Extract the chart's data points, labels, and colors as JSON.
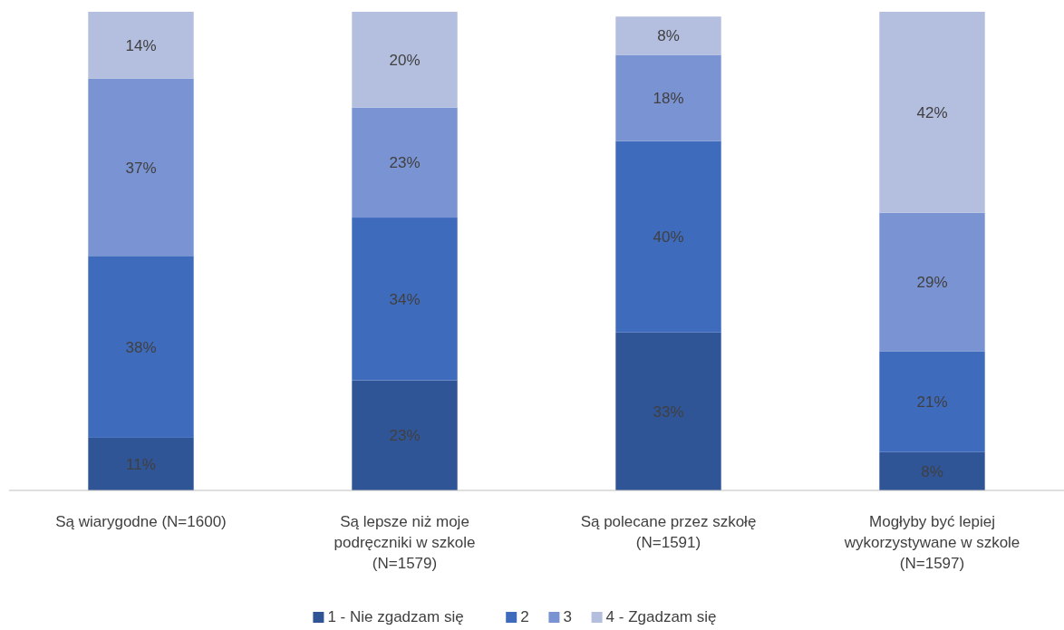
{
  "chart_data": {
    "type": "bar",
    "stacked": true,
    "legend": "bottom",
    "grid": false,
    "categories": [
      "Są wiarygodne (N=1600)",
      "Są lepsze niż moje podręczniki w szkole (N=1579)",
      "Są polecane przez szkołę (N=1591)",
      "Mogłyby być lepiej wykorzystywane w szkole (N=1597)"
    ],
    "series": [
      {
        "name": "1 - Nie zgadzam się",
        "color": "#2f5597",
        "values": [
          11,
          23,
          33,
          8
        ],
        "value_labels": [
          "11%",
          "23%",
          "33%",
          "8%"
        ]
      },
      {
        "name": "2",
        "color": "#3f6bbd",
        "values": [
          38,
          34,
          40,
          21
        ],
        "value_labels": [
          "38%",
          "34%",
          "40%",
          "21%"
        ]
      },
      {
        "name": "3",
        "color": "#7a93d2",
        "values": [
          37,
          23,
          18,
          29
        ],
        "value_labels": [
          "37%",
          "23%",
          "18%",
          "29%"
        ]
      },
      {
        "name": "4 - Zgadzam się",
        "color": "#b4bfe0",
        "values": [
          14,
          20,
          8,
          42
        ],
        "value_labels": [
          "14%",
          "20%",
          "8%",
          "42%"
        ]
      }
    ]
  }
}
